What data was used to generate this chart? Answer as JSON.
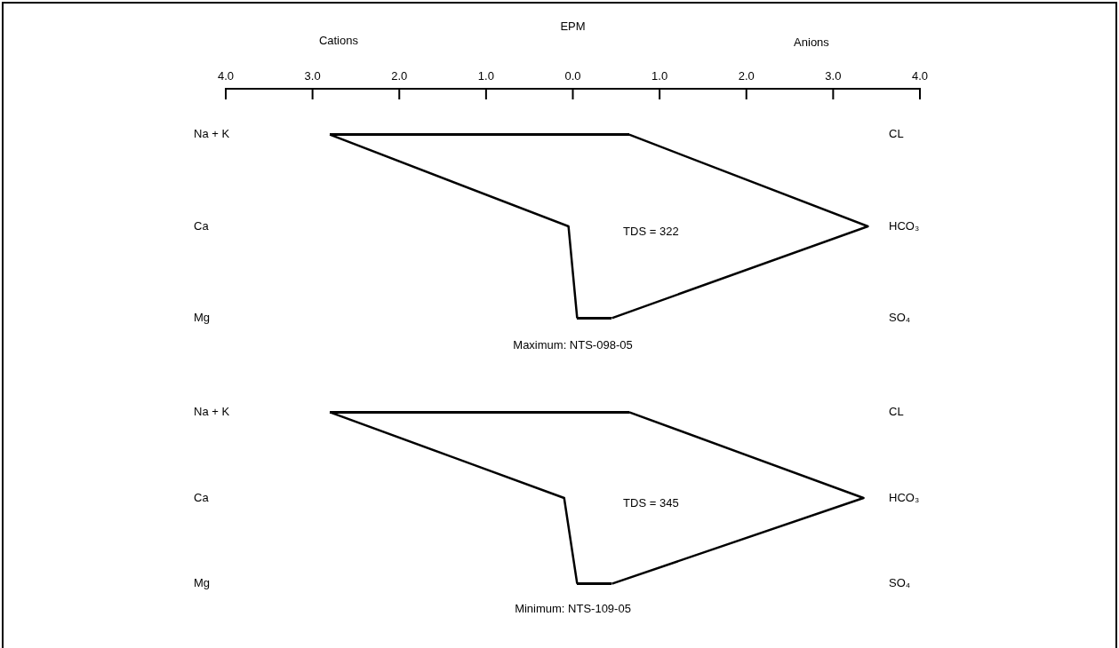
{
  "chart_data": [
    {
      "type": "line",
      "orientation": "horizontal",
      "xlabel": "EPM",
      "categories": [
        "Na + K",
        "Ca",
        "Mg"
      ],
      "y2_categories": [
        "CL",
        "HCO₃",
        "SO₄"
      ],
      "series": [
        {
          "color": "#000000",
          "values": [
            -2.8,
            -0.05,
            0.05
          ]
        },
        {
          "color": "#000000",
          "values": [
            0.65,
            3.4,
            0.45
          ]
        }
      ],
      "xlim": [
        -4,
        4
      ],
      "xticks": [
        {
          "value": -4,
          "label": "4.0"
        },
        {
          "value": -3,
          "label": "3.0"
        },
        {
          "value": -2,
          "label": "2.0"
        },
        {
          "value": -1,
          "label": "1.0"
        },
        {
          "value": 0,
          "label": "0.0"
        },
        {
          "value": 1,
          "label": "1.0"
        },
        {
          "value": 2,
          "label": "2.0"
        },
        {
          "value": 3,
          "label": "3.0"
        },
        {
          "value": 4,
          "label": "4.0"
        }
      ],
      "annotations": [
        "Cations",
        "Anions",
        "TDS = 322",
        "Maximum: NTS-098-05"
      ]
    },
    {
      "type": "line",
      "orientation": "horizontal",
      "categories": [
        "Na + K",
        "Ca",
        "Mg"
      ],
      "y2_categories": [
        "CL",
        "HCO₃",
        "SO₄"
      ],
      "series": [
        {
          "color": "#000000",
          "values": [
            -2.8,
            -0.1,
            0.05
          ]
        },
        {
          "color": "#000000",
          "values": [
            0.65,
            3.35,
            0.45
          ]
        }
      ],
      "xlim": [
        -4,
        4
      ],
      "tick_labels": false,
      "annotations": [
        "TDS = 345",
        "Minimum: NTS-109-05"
      ]
    }
  ]
}
